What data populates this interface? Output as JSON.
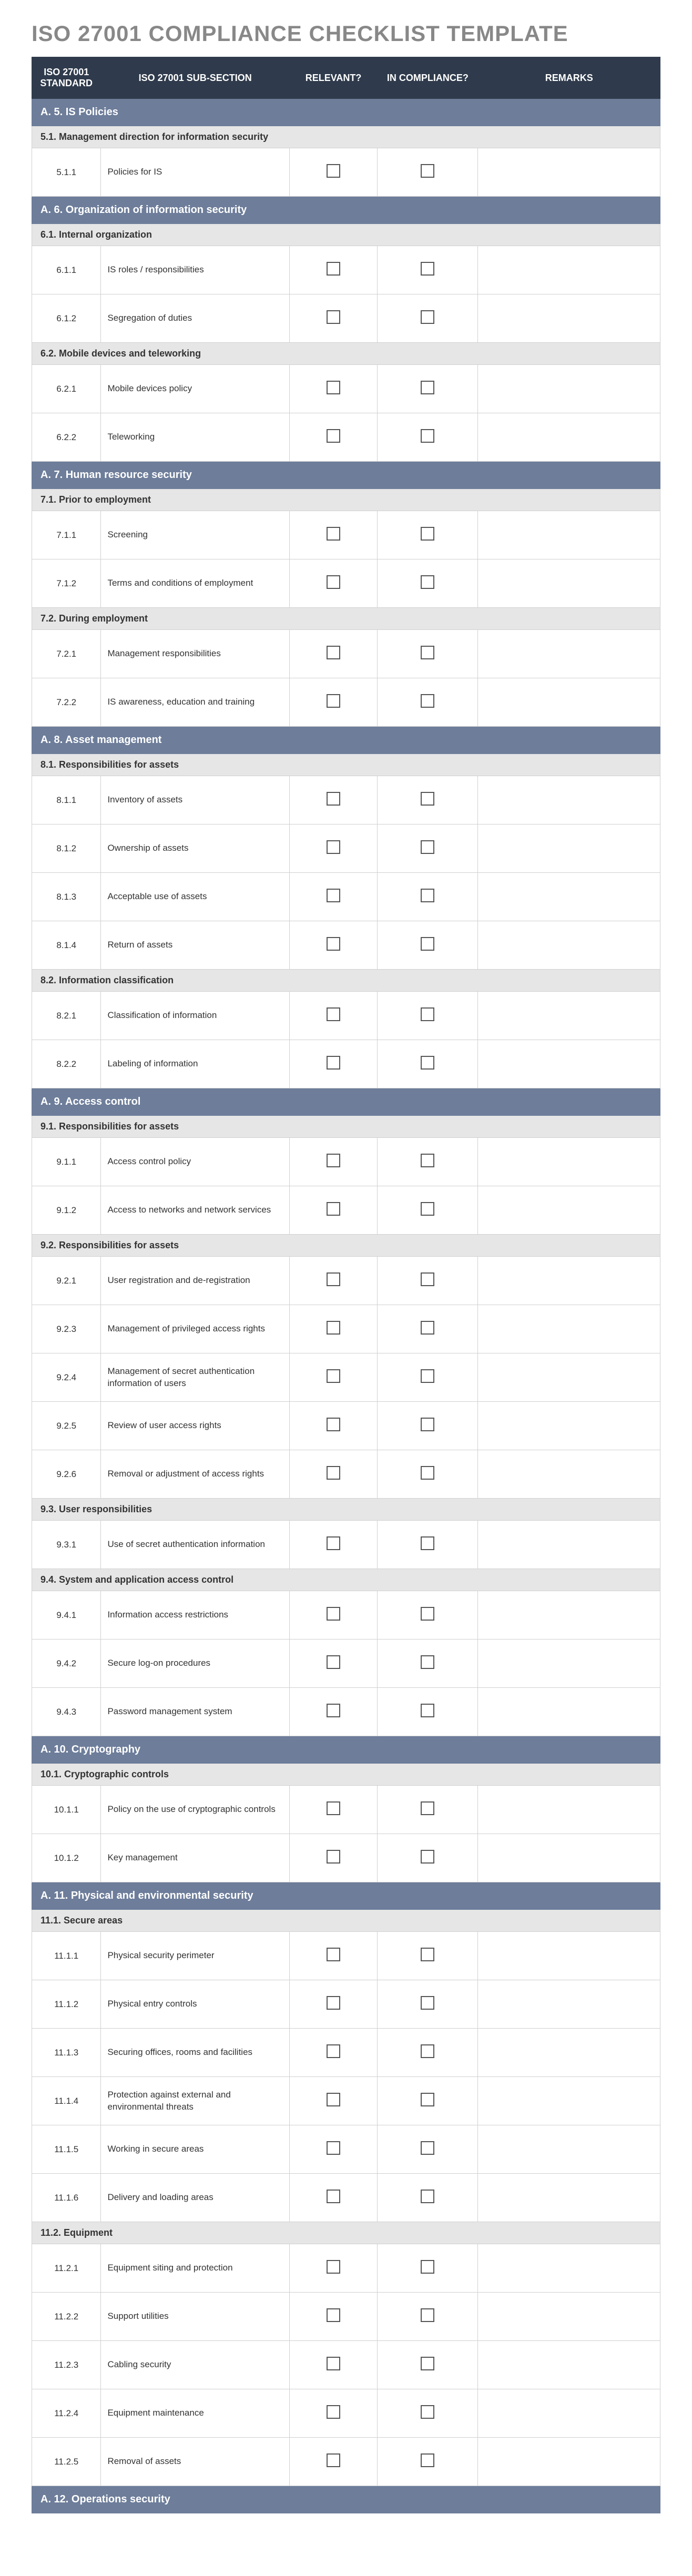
{
  "title": "ISO 27001 COMPLIANCE CHECKLIST TEMPLATE",
  "colors": {
    "title": "#888888",
    "header_bg": "#2f3b4c",
    "header_text": "#ffffff",
    "section_bg": "#6d7d9a",
    "section_text": "#ffffff",
    "subsection_bg": "#e6e6e6",
    "border": "#d0d0d0"
  },
  "columns": {
    "standard": "ISO 27001 STANDARD",
    "subsection": "ISO 27001 SUB-SECTION",
    "relevant": "RELEVANT?",
    "compliance": "IN COMPLIANCE?",
    "remarks": "REMARKS"
  },
  "column_widths_pct": [
    11,
    30,
    14,
    16,
    29
  ],
  "sections": [
    {
      "title": "A. 5. IS Policies",
      "subsections": [
        {
          "title": "5.1. Management direction for information security",
          "items": [
            {
              "std": "5.1.1",
              "sub": "Policies for IS",
              "relevant": false,
              "compliance": false,
              "remarks": ""
            }
          ]
        }
      ]
    },
    {
      "title": "A. 6. Organization of information security",
      "subsections": [
        {
          "title": "6.1. Internal organization",
          "items": [
            {
              "std": "6.1.1",
              "sub": "IS roles / responsibilities",
              "relevant": false,
              "compliance": false,
              "remarks": ""
            },
            {
              "std": "6.1.2",
              "sub": "Segregation of duties",
              "relevant": false,
              "compliance": false,
              "remarks": ""
            }
          ]
        },
        {
          "title": "6.2. Mobile devices and teleworking",
          "items": [
            {
              "std": "6.2.1",
              "sub": "Mobile devices policy",
              "relevant": false,
              "compliance": false,
              "remarks": ""
            },
            {
              "std": "6.2.2",
              "sub": "Teleworking",
              "relevant": false,
              "compliance": false,
              "remarks": ""
            }
          ]
        }
      ]
    },
    {
      "title": "A. 7. Human resource security",
      "subsections": [
        {
          "title": "7.1. Prior to employment",
          "items": [
            {
              "std": "7.1.1",
              "sub": "Screening",
              "relevant": false,
              "compliance": false,
              "remarks": ""
            },
            {
              "std": "7.1.2",
              "sub": "Terms and conditions of employment",
              "relevant": false,
              "compliance": false,
              "remarks": ""
            }
          ]
        },
        {
          "title": "7.2. During employment",
          "items": [
            {
              "std": "7.2.1",
              "sub": "Management responsibilities",
              "relevant": false,
              "compliance": false,
              "remarks": ""
            },
            {
              "std": "7.2.2",
              "sub": "IS awareness, education and training",
              "relevant": false,
              "compliance": false,
              "remarks": ""
            }
          ]
        }
      ]
    },
    {
      "title": "A. 8. Asset management",
      "subsections": [
        {
          "title": "8.1. Responsibilities for assets",
          "items": [
            {
              "std": "8.1.1",
              "sub": "Inventory of assets",
              "relevant": false,
              "compliance": false,
              "remarks": ""
            },
            {
              "std": "8.1.2",
              "sub": "Ownership of assets",
              "relevant": false,
              "compliance": false,
              "remarks": ""
            },
            {
              "std": "8.1.3",
              "sub": "Acceptable use of assets",
              "relevant": false,
              "compliance": false,
              "remarks": ""
            },
            {
              "std": "8.1.4",
              "sub": "Return of assets",
              "relevant": false,
              "compliance": false,
              "remarks": ""
            }
          ]
        },
        {
          "title": "8.2. Information classification",
          "items": [
            {
              "std": "8.2.1",
              "sub": "Classification of information",
              "relevant": false,
              "compliance": false,
              "remarks": ""
            },
            {
              "std": "8.2.2",
              "sub": "Labeling of information",
              "relevant": false,
              "compliance": false,
              "remarks": ""
            }
          ]
        }
      ]
    },
    {
      "title": "A. 9. Access control",
      "subsections": [
        {
          "title": "9.1. Responsibilities for assets",
          "items": [
            {
              "std": "9.1.1",
              "sub": "Access control policy",
              "relevant": false,
              "compliance": false,
              "remarks": ""
            },
            {
              "std": "9.1.2",
              "sub": "Access to networks and network services",
              "relevant": false,
              "compliance": false,
              "remarks": ""
            }
          ]
        },
        {
          "title": "9.2. Responsibilities for assets",
          "items": [
            {
              "std": "9.2.1",
              "sub": "User registration and de-registration",
              "relevant": false,
              "compliance": false,
              "remarks": ""
            },
            {
              "std": "9.2.3",
              "sub": "Management of privileged access rights",
              "relevant": false,
              "compliance": false,
              "remarks": ""
            },
            {
              "std": "9.2.4",
              "sub": "Management of secret authentication information of users",
              "relevant": false,
              "compliance": false,
              "remarks": ""
            },
            {
              "std": "9.2.5",
              "sub": "Review of user access rights",
              "relevant": false,
              "compliance": false,
              "remarks": ""
            },
            {
              "std": "9.2.6",
              "sub": "Removal or adjustment of access rights",
              "relevant": false,
              "compliance": false,
              "remarks": ""
            }
          ]
        },
        {
          "title": "9.3. User responsibilities",
          "items": [
            {
              "std": "9.3.1",
              "sub": "Use of secret authentication information",
              "relevant": false,
              "compliance": false,
              "remarks": ""
            }
          ]
        },
        {
          "title": "9.4. System and application access control",
          "items": [
            {
              "std": "9.4.1",
              "sub": "Information access restrictions",
              "relevant": false,
              "compliance": false,
              "remarks": ""
            },
            {
              "std": "9.4.2",
              "sub": "Secure log-on procedures",
              "relevant": false,
              "compliance": false,
              "remarks": ""
            },
            {
              "std": "9.4.3",
              "sub": "Password management system",
              "relevant": false,
              "compliance": false,
              "remarks": ""
            }
          ]
        }
      ]
    },
    {
      "title": "A. 10. Cryptography",
      "subsections": [
        {
          "title": "10.1. Cryptographic controls",
          "items": [
            {
              "std": "10.1.1",
              "sub": "Policy on the use of cryptographic controls",
              "relevant": false,
              "compliance": false,
              "remarks": ""
            },
            {
              "std": "10.1.2",
              "sub": "Key management",
              "relevant": false,
              "compliance": false,
              "remarks": ""
            }
          ]
        }
      ]
    },
    {
      "title": "A. 11. Physical and environmental security",
      "subsections": [
        {
          "title": "11.1. Secure areas",
          "items": [
            {
              "std": "11.1.1",
              "sub": "Physical security perimeter",
              "relevant": false,
              "compliance": false,
              "remarks": ""
            },
            {
              "std": "11.1.2",
              "sub": "Physical entry controls",
              "relevant": false,
              "compliance": false,
              "remarks": ""
            },
            {
              "std": "11.1.3",
              "sub": "Securing offices, rooms and facilities",
              "relevant": false,
              "compliance": false,
              "remarks": ""
            },
            {
              "std": "11.1.4",
              "sub": "Protection against external and environmental threats",
              "relevant": false,
              "compliance": false,
              "remarks": ""
            },
            {
              "std": "11.1.5",
              "sub": "Working in secure areas",
              "relevant": false,
              "compliance": false,
              "remarks": ""
            },
            {
              "std": "11.1.6",
              "sub": "Delivery and loading areas",
              "relevant": false,
              "compliance": false,
              "remarks": ""
            }
          ]
        },
        {
          "title": "11.2. Equipment",
          "items": [
            {
              "std": "11.2.1",
              "sub": "Equipment siting and protection",
              "relevant": false,
              "compliance": false,
              "remarks": ""
            },
            {
              "std": "11.2.2",
              "sub": "Support utilities",
              "relevant": false,
              "compliance": false,
              "remarks": ""
            },
            {
              "std": "11.2.3",
              "sub": "Cabling security",
              "relevant": false,
              "compliance": false,
              "remarks": ""
            },
            {
              "std": "11.2.4",
              "sub": "Equipment maintenance",
              "relevant": false,
              "compliance": false,
              "remarks": ""
            },
            {
              "std": "11.2.5",
              "sub": "Removal of assets",
              "relevant": false,
              "compliance": false,
              "remarks": ""
            }
          ]
        }
      ]
    },
    {
      "title": "A. 12. Operations security",
      "subsections": []
    }
  ]
}
